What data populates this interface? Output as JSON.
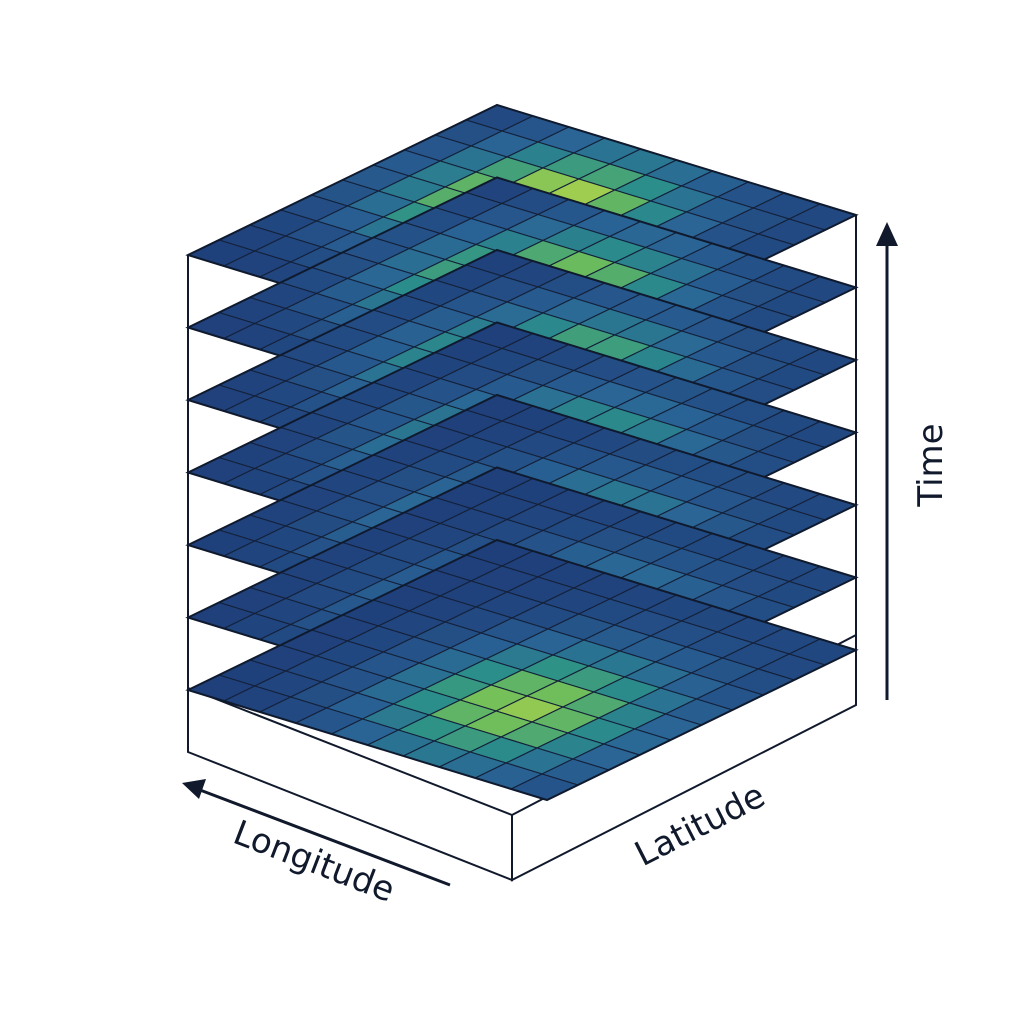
{
  "axes": {
    "x_label": "Longitude",
    "y_label": "Latitude",
    "time_label": "Time"
  },
  "layers": {
    "count": 7,
    "grid_rows": 10,
    "grid_cols": 10
  },
  "colors": {
    "low": "#1f3f7a",
    "mid": "#2b8f8a",
    "high": "#f4e83a",
    "line": "#111a2c",
    "background": "#ffffff"
  }
}
